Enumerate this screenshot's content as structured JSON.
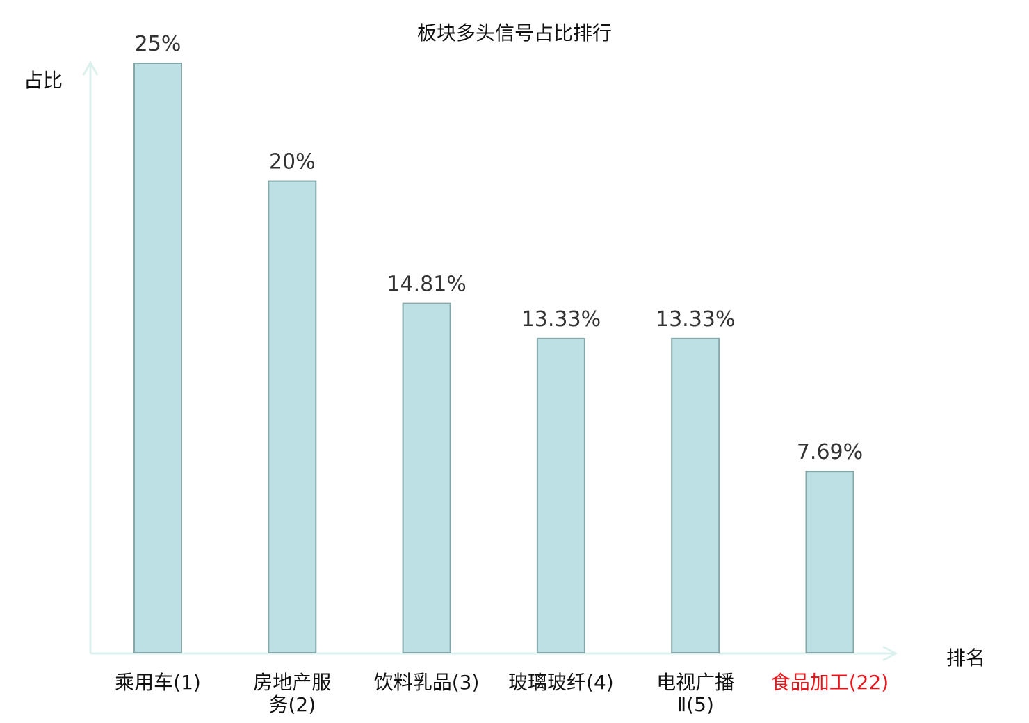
{
  "chart_data": {
    "type": "bar",
    "title": "板块多头信号占比排行",
    "xlabel": "排名",
    "ylabel": "占比",
    "categories": [
      "乘用车(1)",
      "房地产服\n务(2)",
      "饮料乳品(3)",
      "玻璃玻纤(4)",
      "电视广播\nⅡ(5)",
      "食品加工(22)"
    ],
    "values": [
      25,
      20,
      14.81,
      13.33,
      13.33,
      7.69
    ],
    "value_labels": [
      "25%",
      "20%",
      "14.81%",
      "13.33%",
      "13.33%",
      "7.69%"
    ],
    "highlight_index": 5,
    "ylim": [
      0,
      25
    ],
    "grid": false,
    "colors": {
      "bar_fill": "#bce0e3",
      "bar_stroke": "#86a6a8",
      "axis": "#dcf1ee",
      "highlight_label": "#e8151b",
      "label": "#111111",
      "value_label": "#333333"
    }
  }
}
